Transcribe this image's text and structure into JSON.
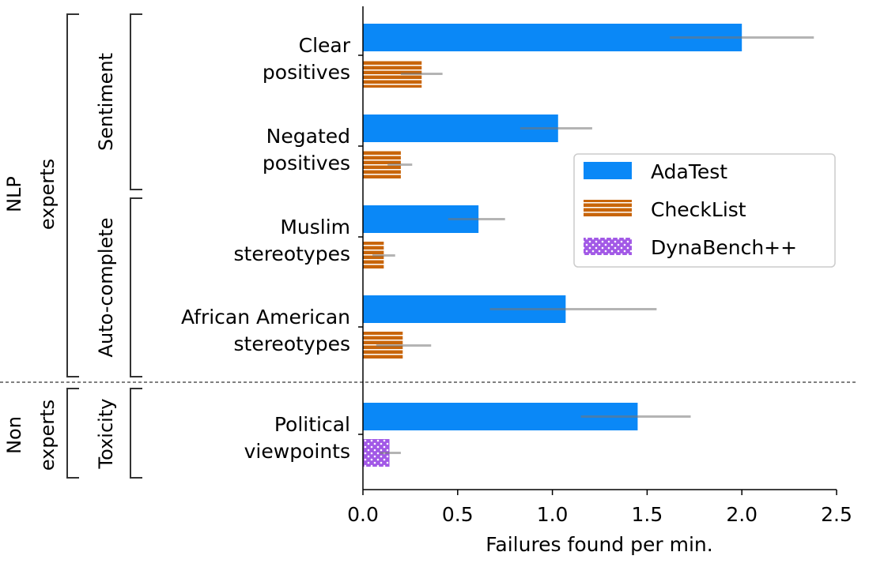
{
  "chart_data": {
    "type": "bar",
    "orientation": "horizontal",
    "xlabel": "Failures found per min.",
    "xlim": [
      0,
      2.5
    ],
    "xticks": [
      "0.0",
      "0.5",
      "1.0",
      "1.5",
      "2.0",
      "2.5"
    ],
    "grid": false,
    "legend_position": "right",
    "categories": [
      {
        "lines": [
          "Clear",
          "positives"
        ]
      },
      {
        "lines": [
          "Negated",
          "positives"
        ]
      },
      {
        "lines": [
          "Muslim",
          "stereotypes"
        ]
      },
      {
        "lines": [
          "African American",
          "stereotypes"
        ]
      },
      {
        "lines": [
          "Political",
          "viewpoints"
        ]
      }
    ],
    "groups": [
      {
        "label": [
          "NLP",
          "experts"
        ],
        "subgroups": [
          {
            "label": "Sentiment",
            "categories": [
              0,
              1
            ]
          },
          {
            "label": "Auto-complete",
            "categories": [
              2,
              3
            ]
          }
        ]
      },
      {
        "label": [
          "Non",
          "experts"
        ],
        "subgroups": [
          {
            "label": "Toxicity",
            "categories": [
              4
            ]
          }
        ]
      }
    ],
    "series": [
      {
        "name": "AdaTest",
        "color": "#0a88f7",
        "pattern": "solid",
        "values": [
          2.0,
          1.03,
          0.61,
          1.07,
          1.45
        ],
        "error_low": [
          1.62,
          0.83,
          0.45,
          0.67,
          1.15
        ],
        "error_high": [
          2.38,
          1.21,
          0.75,
          1.55,
          1.73
        ]
      },
      {
        "name": "CheckList",
        "color": "#c8650a",
        "pattern": "horizontal-stripes",
        "values": [
          0.31,
          0.2,
          0.11,
          0.21,
          null
        ],
        "error_low": [
          0.2,
          0.13,
          0.05,
          0.07,
          null
        ],
        "error_high": [
          0.42,
          0.26,
          0.17,
          0.36,
          null
        ]
      },
      {
        "name": "DynaBench++",
        "color": "#a259e6",
        "pattern": "dots",
        "values": [
          null,
          null,
          null,
          null,
          0.14
        ],
        "error_low": [
          null,
          null,
          null,
          null,
          0.09
        ],
        "error_high": [
          null,
          null,
          null,
          null,
          0.2
        ]
      }
    ]
  }
}
